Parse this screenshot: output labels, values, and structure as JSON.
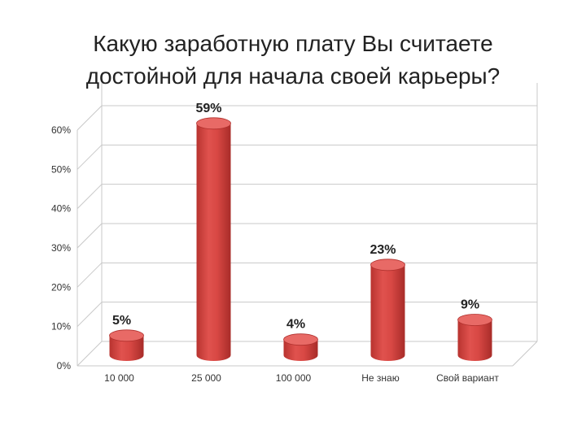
{
  "chart_data": {
    "type": "bar",
    "title_lines": [
      "Какую заработную плату Вы считаете",
      "достойной для начала своей карьеры?"
    ],
    "categories": [
      "10 000",
      "25 000",
      "100 000",
      "Не знаю",
      "Свой вариант"
    ],
    "values": [
      5,
      59,
      4,
      23,
      9
    ],
    "data_labels": [
      "5%",
      "59%",
      "4%",
      "23%",
      "9%"
    ],
    "y_ticks": [
      "0%",
      "10%",
      "20%",
      "30%",
      "40%",
      "50%",
      "60%"
    ],
    "ylim": [
      0,
      60
    ],
    "grid": true,
    "style": "3d-cylinder",
    "colors": {
      "bar": "#d94a47",
      "bar_dark": "#b0302d",
      "bar_top": "#e86a66",
      "grid": "#c8c8c8"
    }
  }
}
